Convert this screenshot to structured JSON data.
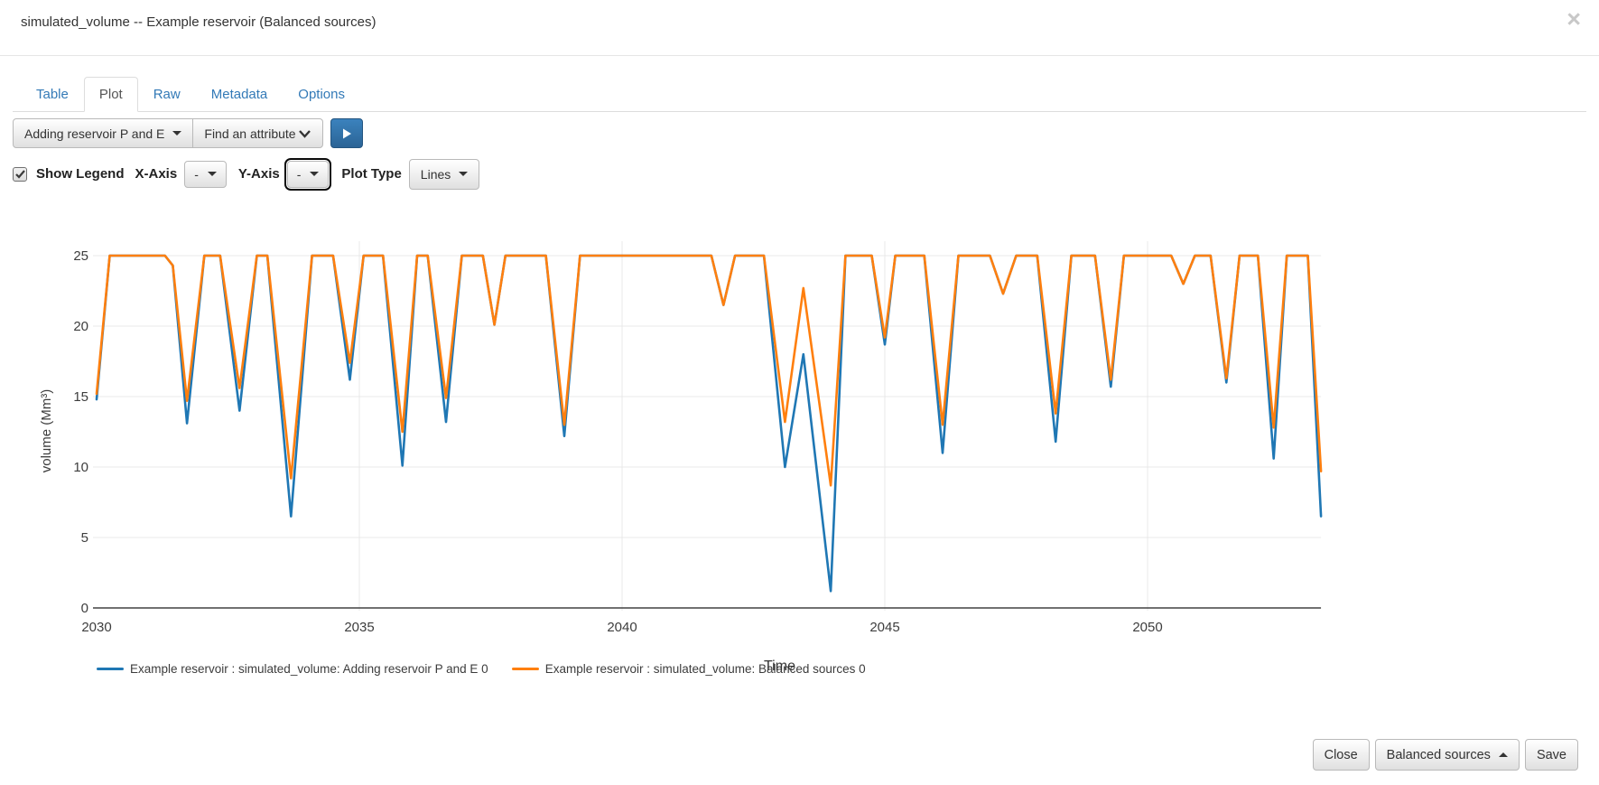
{
  "header": {
    "title": "simulated_volume -- Example reservoir (Balanced sources)",
    "close_icon": "×"
  },
  "tabs": {
    "active": "Plot",
    "items": [
      {
        "label": "Table"
      },
      {
        "label": "Plot"
      },
      {
        "label": "Raw"
      },
      {
        "label": "Metadata"
      },
      {
        "label": "Options"
      }
    ]
  },
  "toolbar": {
    "scenario_select": "Adding reservoir P and E",
    "attribute_select": "Find an attribute",
    "play_button": "run"
  },
  "controls": {
    "show_legend": {
      "label": "Show Legend",
      "checked": true
    },
    "x_axis": {
      "label": "X-Axis",
      "value": "-"
    },
    "y_axis": {
      "label": "Y-Axis",
      "value": "-",
      "focused": true
    },
    "plot_type": {
      "label": "Plot Type",
      "value": "Lines"
    }
  },
  "chart_data": {
    "type": "line",
    "title": "",
    "xlabel": "Time",
    "ylabel": "volume (Mm³)",
    "xlim": [
      2030,
      2053.3
    ],
    "ylim": [
      0,
      25
    ],
    "x_ticks": [
      2030,
      2035,
      2040,
      2045,
      2050
    ],
    "y_ticks": [
      0,
      5,
      10,
      15,
      20,
      25
    ],
    "grid": true,
    "legend_position": "bottom",
    "series": [
      {
        "name": "Example reservoir : simulated_volume: Adding reservoir P and E 0",
        "color": "#1f77b4",
        "x": [
          2030.0,
          2030.25,
          2031.3,
          2031.45,
          2031.72,
          2032.05,
          2032.35,
          2032.72,
          2033.05,
          2033.25,
          2033.7,
          2034.1,
          2034.5,
          2034.82,
          2035.08,
          2035.45,
          2035.82,
          2036.1,
          2036.3,
          2036.65,
          2036.95,
          2037.35,
          2037.57,
          2037.78,
          2038.55,
          2038.9,
          2039.2,
          2041.7,
          2041.93,
          2042.15,
          2042.7,
          2043.1,
          2043.45,
          2043.97,
          2044.25,
          2044.75,
          2045.0,
          2045.2,
          2045.75,
          2046.1,
          2046.4,
          2047.0,
          2047.25,
          2047.5,
          2047.9,
          2048.25,
          2048.55,
          2049.0,
          2049.3,
          2049.55,
          2050.45,
          2050.68,
          2050.9,
          2051.2,
          2051.5,
          2051.75,
          2052.1,
          2052.4,
          2052.65,
          2053.05,
          2053.3
        ],
        "y": [
          14.8,
          25,
          25,
          24.3,
          13.1,
          25,
          25,
          14.0,
          25,
          25,
          6.5,
          25,
          25,
          16.2,
          25,
          25,
          10.1,
          25,
          25,
          13.2,
          25,
          25,
          20.1,
          25,
          25,
          12.2,
          25,
          25,
          21.5,
          25,
          25,
          10.0,
          18.0,
          1.2,
          25,
          25,
          18.7,
          25,
          25,
          11.0,
          25,
          25,
          22.3,
          25,
          25,
          11.8,
          25,
          25,
          15.7,
          25,
          25,
          23.0,
          25,
          25,
          16.0,
          25,
          25,
          10.6,
          25,
          25,
          6.5
        ]
      },
      {
        "name": "Example reservoir : simulated_volume: Balanced sources 0",
        "color": "#ff7f0e",
        "x": [
          2030.0,
          2030.25,
          2031.3,
          2031.45,
          2031.72,
          2032.05,
          2032.35,
          2032.72,
          2033.05,
          2033.25,
          2033.7,
          2034.1,
          2034.5,
          2034.82,
          2035.08,
          2035.45,
          2035.82,
          2036.1,
          2036.3,
          2036.65,
          2036.95,
          2037.35,
          2037.57,
          2037.78,
          2038.55,
          2038.9,
          2039.2,
          2041.7,
          2041.93,
          2042.15,
          2042.7,
          2043.1,
          2043.45,
          2043.97,
          2044.25,
          2044.75,
          2045.0,
          2045.2,
          2045.75,
          2046.1,
          2046.4,
          2047.0,
          2047.25,
          2047.5,
          2047.9,
          2048.25,
          2048.55,
          2049.0,
          2049.3,
          2049.55,
          2050.45,
          2050.68,
          2050.9,
          2051.2,
          2051.5,
          2051.75,
          2052.1,
          2052.4,
          2052.65,
          2053.05,
          2053.3
        ],
        "y": [
          15.2,
          25,
          25,
          24.3,
          14.7,
          25,
          25,
          15.6,
          25,
          25,
          9.2,
          25,
          25,
          17.4,
          25,
          25,
          12.5,
          25,
          25,
          14.9,
          25,
          25,
          20.1,
          25,
          25,
          13.0,
          25,
          25,
          21.5,
          25,
          25,
          13.2,
          22.7,
          8.7,
          25,
          25,
          19.2,
          25,
          25,
          13.0,
          25,
          25,
          22.3,
          25,
          25,
          13.8,
          25,
          25,
          16.2,
          25,
          25,
          23.0,
          25,
          25,
          16.3,
          25,
          25,
          12.8,
          25,
          25,
          9.7
        ]
      }
    ]
  },
  "footer": {
    "close_button": "Close",
    "scenario_dropdown": "Balanced sources",
    "save_button": "Save"
  },
  "colors": {
    "link_blue": "#337ab7",
    "series_blue": "#1f77b4",
    "series_orange": "#ff7f0e",
    "grid": "#e8e8e8",
    "axis_line": "#424242",
    "axis_text": "#3d3d3d"
  }
}
